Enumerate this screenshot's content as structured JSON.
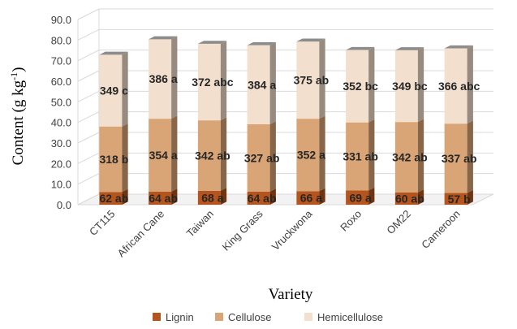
{
  "chart_data": {
    "type": "bar",
    "stacked": true,
    "three_d": true,
    "categories": [
      "CT115",
      "African Cane",
      "Taiwan",
      "King Grass",
      "Vruckwona",
      "Roxo",
      "OM22",
      "Cameroon"
    ],
    "series": [
      {
        "name": "Lignin",
        "color": "#b5541c",
        "values": [
          6.2,
          6.4,
          6.8,
          6.4,
          6.6,
          6.9,
          6.0,
          5.7
        ],
        "labels": [
          "62 ab",
          "64 ab",
          "68 a",
          "64 ab",
          "66 a",
          "69 a",
          "60 ab",
          "57 b"
        ]
      },
      {
        "name": "Cellulose",
        "color": "#d9a576",
        "values": [
          31.8,
          35.4,
          34.2,
          32.7,
          35.2,
          33.1,
          34.2,
          33.7
        ],
        "labels": [
          "318 b",
          "354 a",
          "342 ab",
          "327 ab",
          "352 a",
          "331 ab",
          "342 ab",
          "337 ab"
        ]
      },
      {
        "name": "Hemicellulose",
        "color": "#f3dfcd",
        "values": [
          34.9,
          38.6,
          37.2,
          38.4,
          37.5,
          35.2,
          34.9,
          36.6
        ],
        "labels": [
          "349 c",
          "386 a",
          "372 abc",
          "384 a",
          "375 ab",
          "352 bc",
          "349 bc",
          "366 abc"
        ]
      }
    ],
    "y_ticks": [
      "0.0",
      "10.0",
      "20.0",
      "30.0",
      "40.0",
      "50.0",
      "60.0",
      "70.0",
      "80.0",
      "90.0"
    ],
    "ylim": [
      0,
      90
    ],
    "xlabel": "Variety",
    "ylabel": "Content (g kg",
    "ylabel_sup": "-1",
    "ylabel_close": ")",
    "grid": true,
    "legend_position": "bottom"
  }
}
